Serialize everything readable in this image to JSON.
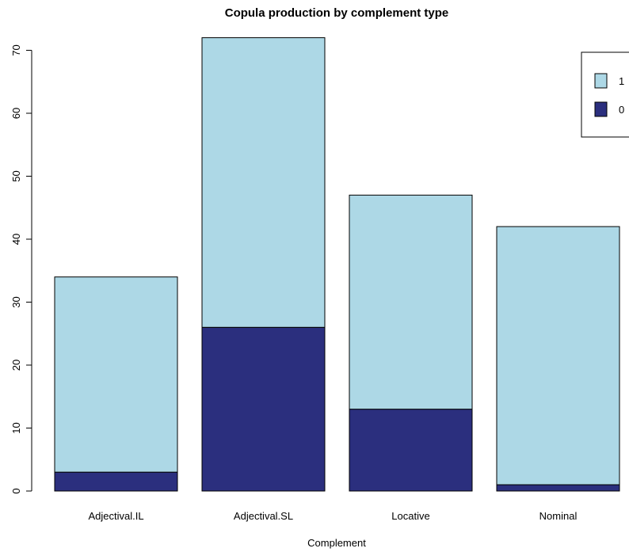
{
  "chart_data": {
    "type": "bar",
    "stacked": true,
    "title": "Copula production by complement type",
    "xlabel": "Complement",
    "ylabel": "",
    "categories": [
      "Adjectival.IL",
      "Adjectival.SL",
      "Locative",
      "Nominal"
    ],
    "series": [
      {
        "name": "0",
        "color": "#2b2f7e",
        "values": [
          3,
          26,
          13,
          1
        ]
      },
      {
        "name": "1",
        "color": "#add8e6",
        "values": [
          31,
          46,
          34,
          41
        ]
      }
    ],
    "ylim": [
      0,
      70
    ],
    "yticks": [
      0,
      10,
      20,
      30,
      40,
      50,
      60,
      70
    ],
    "legend": {
      "position": "top-right",
      "order": [
        "1",
        "0"
      ]
    },
    "grid": false
  }
}
